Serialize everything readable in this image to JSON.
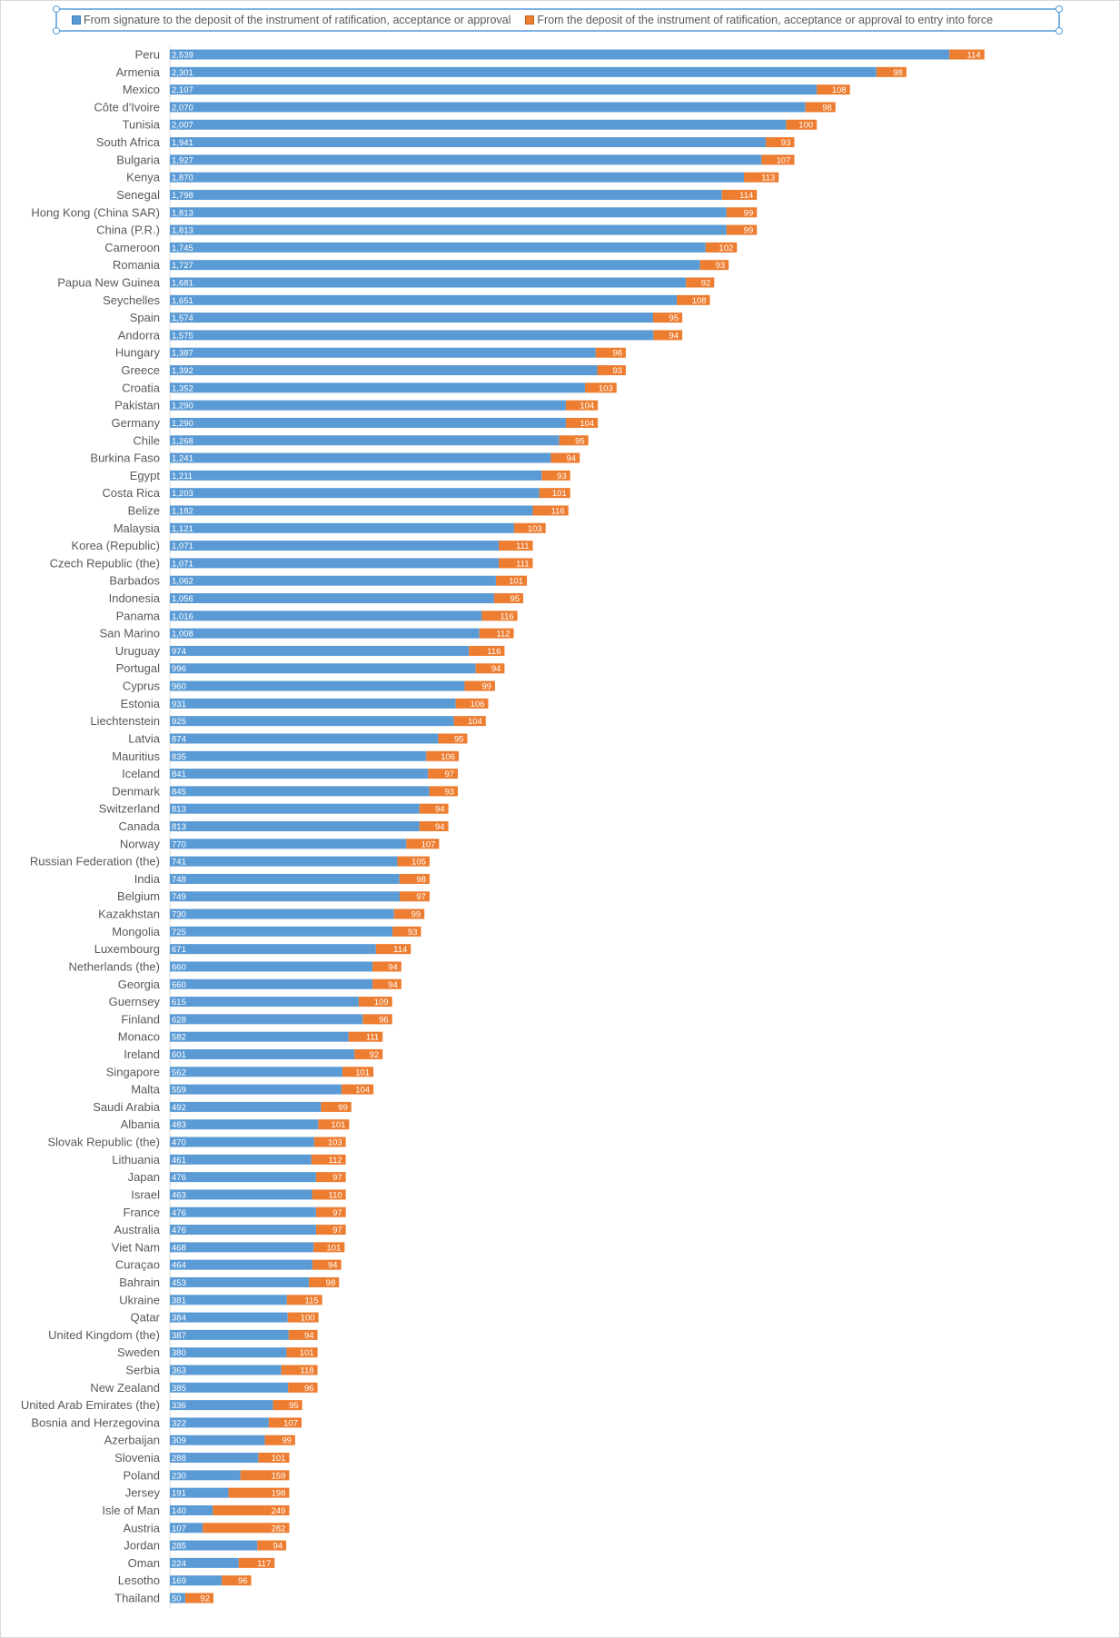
{
  "chart_data": {
    "type": "bar",
    "orientation": "horizontal",
    "stacked": true,
    "legend_position": "top",
    "grid": false,
    "colors": {
      "series1": "#5B9BD5",
      "series2": "#ED7D31"
    },
    "categories": [
      "Peru",
      "Armenia",
      "Mexico",
      "Côte d'Ivoire",
      "Tunisia",
      "South Africa",
      "Bulgaria",
      "Kenya",
      "Senegal",
      "Hong Kong (China SAR)",
      "China (P.R.)",
      "Cameroon",
      "Romania",
      "Papua New Guinea",
      "Seychelles",
      "Spain",
      "Andorra",
      "Hungary",
      "Greece",
      "Croatia",
      "Pakistan",
      "Germany",
      "Chile",
      "Burkina Faso",
      "Egypt",
      "Costa Rica",
      "Belize",
      "Malaysia",
      "Korea (Republic)",
      "Czech Republic (the)",
      "Barbados",
      "Indonesia",
      "Panama",
      "San Marino",
      "Uruguay",
      "Portugal",
      "Cyprus",
      "Estonia",
      "Liechtenstein",
      "Latvia",
      "Mauritius",
      "Iceland",
      "Denmark",
      "Switzerland",
      "Canada",
      "Norway",
      "Russian Federation (the)",
      "India",
      "Belgium",
      "Kazakhstan",
      "Mongolia",
      "Luxembourg",
      "Netherlands (the)",
      "Georgia",
      "Guernsey",
      "Finland",
      "Monaco",
      "Ireland",
      "Singapore",
      "Malta",
      "Saudi Arabia",
      "Albania",
      "Slovak Republic (the)",
      "Lithuania",
      "Japan",
      "Israel",
      "France",
      "Australia",
      "Viet Nam",
      "Curaçao",
      "Bahrain",
      "Ukraine",
      "Qatar",
      "United Kingdom (the)",
      "Sweden",
      "Serbia",
      "New Zealand",
      "United Arab Emirates (the)",
      "Bosnia and Herzegovina",
      "Azerbaijan",
      "Slovenia",
      "Poland",
      "Jersey",
      "Isle of Man",
      "Austria",
      "Jordan",
      "Oman",
      "Lesotho",
      "Thailand"
    ],
    "series": [
      {
        "name": "From signature to the deposit of the instrument of ratification, acceptance or approval",
        "values": [
          2539,
          2301,
          2107,
          2070,
          2007,
          1941,
          1927,
          1870,
          1798,
          1813,
          1813,
          1745,
          1727,
          1681,
          1651,
          1574,
          1575,
          1387,
          1392,
          1352,
          1290,
          1290,
          1268,
          1241,
          1211,
          1203,
          1182,
          1121,
          1071,
          1071,
          1062,
          1056,
          1016,
          1008,
          974,
          996,
          960,
          931,
          925,
          874,
          835,
          841,
          845,
          813,
          813,
          770,
          741,
          748,
          749,
          730,
          725,
          671,
          660,
          660,
          615,
          628,
          582,
          601,
          562,
          559,
          492,
          483,
          470,
          461,
          476,
          463,
          476,
          476,
          468,
          464,
          453,
          381,
          384,
          387,
          380,
          363,
          385,
          336,
          322,
          309,
          288,
          230,
          191,
          140,
          107,
          285,
          224,
          169,
          50
        ]
      },
      {
        "name": "From the deposit of the instrument of ratification, acceptance or approval to entry into force",
        "values": [
          114,
          98,
          108,
          98,
          100,
          93,
          107,
          113,
          114,
          99,
          99,
          102,
          93,
          92,
          108,
          95,
          94,
          98,
          93,
          103,
          104,
          104,
          95,
          94,
          93,
          101,
          116,
          103,
          111,
          111,
          101,
          95,
          116,
          112,
          116,
          94,
          99,
          106,
          104,
          95,
          106,
          97,
          93,
          94,
          94,
          107,
          105,
          98,
          97,
          99,
          93,
          114,
          94,
          94,
          109,
          96,
          111,
          92,
          101,
          104,
          99,
          101,
          103,
          112,
          97,
          110,
          97,
          97,
          101,
          94,
          98,
          115,
          100,
          94,
          101,
          118,
          96,
          95,
          107,
          99,
          101,
          159,
          198,
          249,
          282,
          94,
          117,
          96,
          92
        ]
      }
    ]
  }
}
